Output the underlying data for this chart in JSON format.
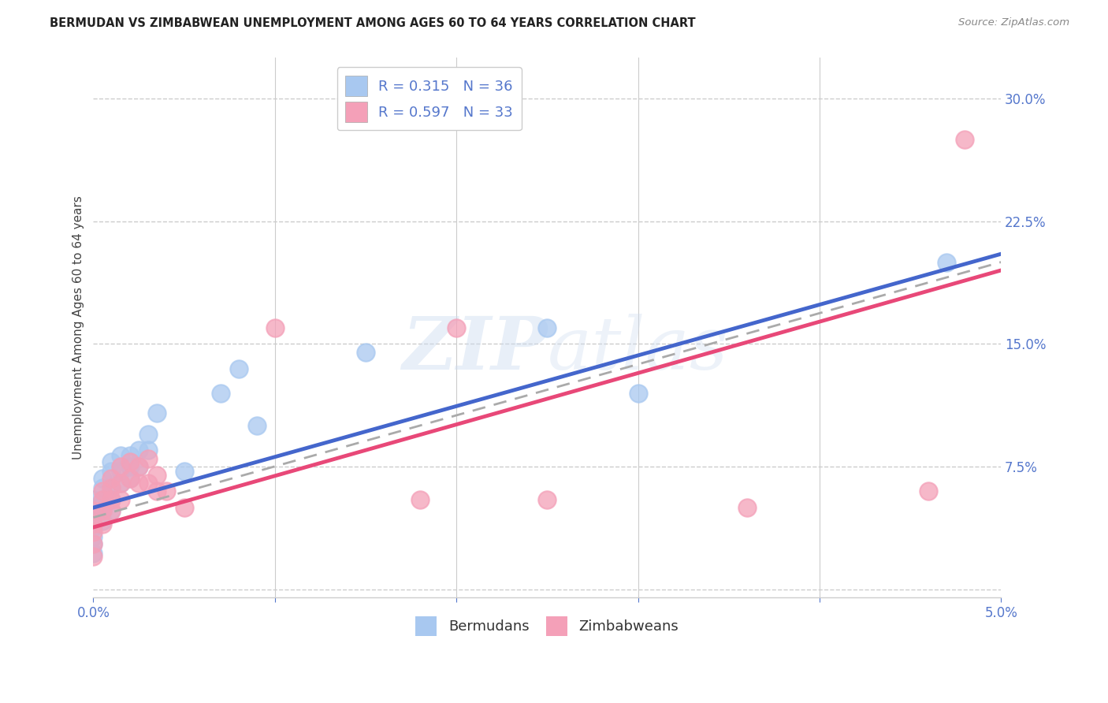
{
  "title": "BERMUDAN VS ZIMBABWEAN UNEMPLOYMENT AMONG AGES 60 TO 64 YEARS CORRELATION CHART",
  "source": "Source: ZipAtlas.com",
  "ylabel": "Unemployment Among Ages 60 to 64 years",
  "xlim": [
    0.0,
    0.05
  ],
  "ylim": [
    -0.005,
    0.325
  ],
  "xticks": [
    0.0,
    0.01,
    0.02,
    0.03,
    0.04,
    0.05
  ],
  "xticklabels": [
    "0.0%",
    "",
    "",
    "",
    "",
    "5.0%"
  ],
  "right_yticks": [
    0.0,
    0.075,
    0.15,
    0.225,
    0.3
  ],
  "right_yticklabels": [
    "",
    "7.5%",
    "15.0%",
    "22.5%",
    "30.0%"
  ],
  "legend_blue_label": "R = 0.315   N = 36",
  "legend_pink_label": "R = 0.597   N = 33",
  "bermudan_color": "#a8c8f0",
  "zimbabwean_color": "#f4a0b8",
  "bermudan_line_color": "#4466cc",
  "zimbabwean_line_color": "#e84878",
  "grid_color": "#cccccc",
  "background_color": "#ffffff",
  "title_fontsize": 10.5,
  "axis_label_fontsize": 11,
  "tick_fontsize": 12,
  "legend_fontsize": 12,
  "tick_color": "#5577cc",
  "bermudan_x": [
    0.0,
    0.0,
    0.0,
    0.0,
    0.0,
    0.0,
    0.0,
    0.0005,
    0.0005,
    0.0005,
    0.0005,
    0.0005,
    0.001,
    0.001,
    0.001,
    0.001,
    0.001,
    0.0015,
    0.0015,
    0.0015,
    0.002,
    0.002,
    0.002,
    0.0025,
    0.0025,
    0.003,
    0.003,
    0.0035,
    0.005,
    0.007,
    0.008,
    0.009,
    0.015,
    0.025,
    0.03,
    0.047
  ],
  "bermudan_y": [
    0.055,
    0.05,
    0.045,
    0.038,
    0.032,
    0.028,
    0.022,
    0.068,
    0.062,
    0.055,
    0.048,
    0.042,
    0.078,
    0.072,
    0.062,
    0.055,
    0.048,
    0.082,
    0.072,
    0.065,
    0.082,
    0.075,
    0.068,
    0.085,
    0.075,
    0.095,
    0.085,
    0.108,
    0.072,
    0.12,
    0.135,
    0.1,
    0.145,
    0.16,
    0.12,
    0.2
  ],
  "zimbabwean_x": [
    0.0,
    0.0,
    0.0,
    0.0,
    0.0,
    0.0005,
    0.0005,
    0.0005,
    0.0005,
    0.001,
    0.001,
    0.001,
    0.001,
    0.0015,
    0.0015,
    0.0015,
    0.002,
    0.002,
    0.0025,
    0.0025,
    0.003,
    0.003,
    0.0035,
    0.0035,
    0.004,
    0.005,
    0.01,
    0.018,
    0.02,
    0.025,
    0.036,
    0.046,
    0.048
  ],
  "zimbabwean_y": [
    0.048,
    0.04,
    0.035,
    0.028,
    0.02,
    0.06,
    0.055,
    0.048,
    0.04,
    0.068,
    0.062,
    0.055,
    0.048,
    0.075,
    0.065,
    0.055,
    0.078,
    0.068,
    0.075,
    0.065,
    0.08,
    0.065,
    0.07,
    0.06,
    0.06,
    0.05,
    0.16,
    0.055,
    0.16,
    0.055,
    0.05,
    0.06,
    0.275
  ],
  "blue_line_x0": 0.0,
  "blue_line_y0": 0.05,
  "blue_line_x1": 0.05,
  "blue_line_y1": 0.205,
  "pink_line_x0": 0.0,
  "pink_line_y0": 0.038,
  "pink_line_x1": 0.05,
  "pink_line_y1": 0.195,
  "gray_line_x0": 0.0,
  "gray_line_y0": 0.044,
  "gray_line_x1": 0.05,
  "gray_line_y1": 0.2
}
